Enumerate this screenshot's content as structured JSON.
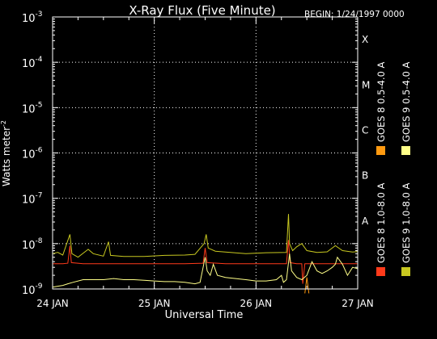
{
  "chart_data": {
    "type": "line",
    "title": "X-Ray Flux (Five Minute)",
    "begin_label": "BEGIN: 1/24/1997 0000",
    "xlabel": "Universal Time",
    "ylabel": "Watts meter",
    "ylabel_exp": "-2",
    "y_scale": "log",
    "ylim": [
      1e-09,
      0.001
    ],
    "y_ticks": [
      {
        "mant": "10",
        "exp": "-9",
        "value": 1e-09
      },
      {
        "mant": "10",
        "exp": "-8",
        "value": 1e-08
      },
      {
        "mant": "10",
        "exp": "-7",
        "value": 1e-07
      },
      {
        "mant": "10",
        "exp": "-6",
        "value": 1e-06
      },
      {
        "mant": "10",
        "exp": "-5",
        "value": 1e-05
      },
      {
        "mant": "10",
        "exp": "-4",
        "value": 0.0001
      },
      {
        "mant": "10",
        "exp": "-3",
        "value": 0.001
      }
    ],
    "x_range_days": [
      24,
      27
    ],
    "x_ticks": [
      {
        "day": 24,
        "label": "24 JAN"
      },
      {
        "day": 25,
        "label": "25 JAN"
      },
      {
        "day": 26,
        "label": "26 JAN"
      },
      {
        "day": 27,
        "label": "27 JAN"
      }
    ],
    "flare_classes": [
      {
        "label": "A",
        "value": 1e-08
      },
      {
        "label": "B",
        "value": 1e-07
      },
      {
        "label": "C",
        "value": 1e-06
      },
      {
        "label": "M",
        "value": 1e-05
      },
      {
        "label": "X",
        "value": 0.0001
      }
    ],
    "grid": "dotted verticals at day boundaries, horizontal at class levels",
    "legend_placement": "right, rotated",
    "series": [
      {
        "name": "GOES 8 1.0-8.0 A",
        "color": "#ff3a1a",
        "points": [
          [
            24.0,
            3.6e-09
          ],
          [
            24.1,
            3.6e-09
          ],
          [
            24.15,
            3.7e-09
          ],
          [
            24.17,
            9e-09
          ],
          [
            24.185,
            3.8e-09
          ],
          [
            24.3,
            3.6e-09
          ],
          [
            24.5,
            3.6e-09
          ],
          [
            24.7,
            3.6e-09
          ],
          [
            24.9,
            3.6e-09
          ],
          [
            25.1,
            3.6e-09
          ],
          [
            25.3,
            3.6e-09
          ],
          [
            25.48,
            3.7e-09
          ],
          [
            25.5,
            8e-09
          ],
          [
            25.52,
            3.8e-09
          ],
          [
            25.7,
            3.6e-09
          ],
          [
            25.9,
            3.6e-09
          ],
          [
            26.1,
            3.6e-09
          ],
          [
            26.25,
            3.6e-09
          ],
          [
            26.3,
            3.6e-09
          ],
          [
            26.32,
            1.2e-08
          ],
          [
            26.335,
            3.8e-09
          ],
          [
            26.4,
            3.6e-09
          ],
          [
            26.45,
            3.6e-09
          ],
          [
            26.46,
            1.3e-09
          ],
          [
            26.48,
            3.6e-09
          ],
          [
            26.6,
            3.6e-09
          ],
          [
            26.8,
            3.6e-09
          ],
          [
            27.0,
            3.6e-09
          ]
        ]
      },
      {
        "name": "GOES 8 0.5-4.0 A",
        "color": "#ff9a10",
        "points": [
          [
            26.48,
            8e-10
          ],
          [
            26.5,
            1.8e-09
          ],
          [
            26.52,
            8e-10
          ]
        ]
      },
      {
        "name": "GOES 9 1.0-8.0 A",
        "color": "#c8c820",
        "points": [
          [
            24.0,
            6e-09
          ],
          [
            24.05,
            6.4e-09
          ],
          [
            24.1,
            5.6e-09
          ],
          [
            24.17,
            1.6e-08
          ],
          [
            24.19,
            6e-09
          ],
          [
            24.25,
            5e-09
          ],
          [
            24.35,
            7.5e-09
          ],
          [
            24.4,
            6e-09
          ],
          [
            24.5,
            5.3e-09
          ],
          [
            24.55,
            1.1e-08
          ],
          [
            24.57,
            5.5e-09
          ],
          [
            24.7,
            5.2e-09
          ],
          [
            24.9,
            5.2e-09
          ],
          [
            25.1,
            5.5e-09
          ],
          [
            25.3,
            5.6e-09
          ],
          [
            25.4,
            5.8e-09
          ],
          [
            25.49,
            1e-08
          ],
          [
            25.51,
            1.6e-08
          ],
          [
            25.53,
            8e-09
          ],
          [
            25.6,
            6.8e-09
          ],
          [
            25.7,
            6.5e-09
          ],
          [
            25.9,
            6e-09
          ],
          [
            26.1,
            6.3e-09
          ],
          [
            26.3,
            6.4e-09
          ],
          [
            26.32,
            4.5e-08
          ],
          [
            26.33,
            1e-08
          ],
          [
            26.36,
            7e-09
          ],
          [
            26.4,
            8.5e-09
          ],
          [
            26.45,
            1e-08
          ],
          [
            26.5,
            7e-09
          ],
          [
            26.6,
            6.4e-09
          ],
          [
            26.7,
            6.6e-09
          ],
          [
            26.78,
            9e-09
          ],
          [
            26.85,
            7e-09
          ],
          [
            26.95,
            6.5e-09
          ],
          [
            27.0,
            6.7e-09
          ]
        ]
      },
      {
        "name": "GOES 9 0.5-4.0 A",
        "color": "#ffff88",
        "points": [
          [
            24.0,
            1.1e-09
          ],
          [
            24.05,
            1.15e-09
          ],
          [
            24.1,
            1.2e-09
          ],
          [
            24.15,
            1.3e-09
          ],
          [
            24.2,
            1.4e-09
          ],
          [
            24.3,
            1.6e-09
          ],
          [
            24.4,
            1.6e-09
          ],
          [
            24.5,
            1.6e-09
          ],
          [
            24.6,
            1.7e-09
          ],
          [
            24.7,
            1.6e-09
          ],
          [
            24.8,
            1.6e-09
          ],
          [
            24.9,
            1.55e-09
          ],
          [
            25.0,
            1.5e-09
          ],
          [
            25.1,
            1.45e-09
          ],
          [
            25.2,
            1.45e-09
          ],
          [
            25.3,
            1.4e-09
          ],
          [
            25.4,
            1.3e-09
          ],
          [
            25.45,
            1.4e-09
          ],
          [
            25.48,
            3e-09
          ],
          [
            25.5,
            5e-09
          ],
          [
            25.52,
            2.5e-09
          ],
          [
            25.55,
            2e-09
          ],
          [
            25.58,
            3.5e-09
          ],
          [
            25.62,
            2e-09
          ],
          [
            25.7,
            1.8e-09
          ],
          [
            25.8,
            1.7e-09
          ],
          [
            25.9,
            1.6e-09
          ],
          [
            26.0,
            1.5e-09
          ],
          [
            26.1,
            1.5e-09
          ],
          [
            26.2,
            1.6e-09
          ],
          [
            26.25,
            2e-09
          ],
          [
            26.27,
            1.4e-09
          ],
          [
            26.3,
            1.6e-09
          ],
          [
            26.33,
            6e-09
          ],
          [
            26.35,
            2.5e-09
          ],
          [
            26.4,
            1.8e-09
          ],
          [
            26.45,
            1.6e-09
          ],
          [
            26.5,
            2e-09
          ],
          [
            26.55,
            4e-09
          ],
          [
            26.6,
            2.5e-09
          ],
          [
            26.65,
            2.2e-09
          ],
          [
            26.7,
            2.5e-09
          ],
          [
            26.75,
            3e-09
          ],
          [
            26.78,
            3.5e-09
          ],
          [
            26.8,
            5e-09
          ],
          [
            26.85,
            3.5e-09
          ],
          [
            26.9,
            2e-09
          ],
          [
            26.95,
            3e-09
          ],
          [
            27.0,
            2.8e-09
          ]
        ]
      }
    ]
  }
}
